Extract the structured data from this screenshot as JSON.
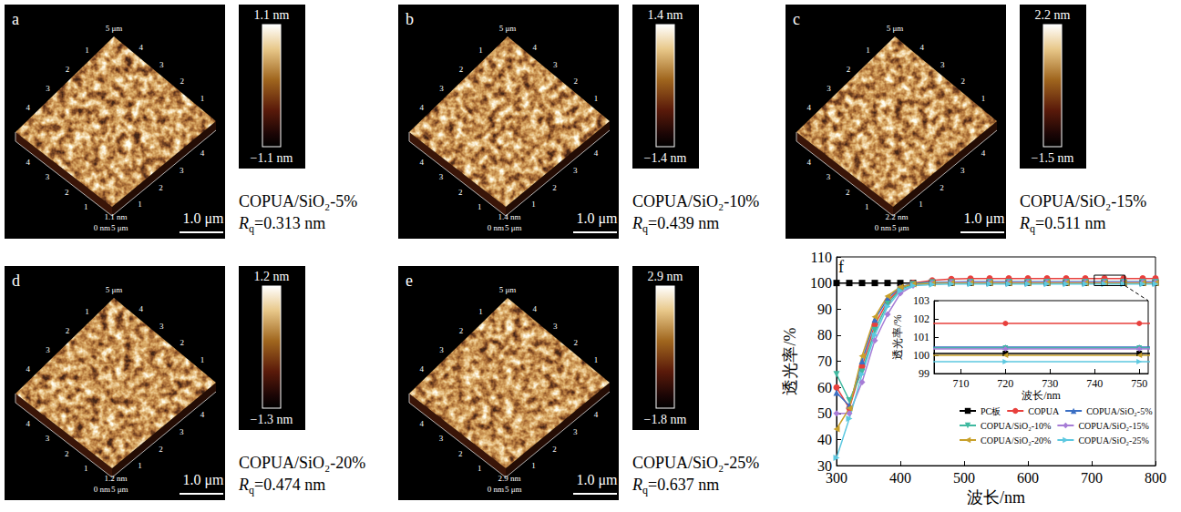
{
  "afm_common": {
    "top_label": "5 μm",
    "edge_ticks": [
      "1",
      "2",
      "3",
      "4"
    ],
    "origin_label": "0 nm",
    "end_label": "5 μm",
    "scale_bar": "1.0 μm"
  },
  "afm_panels": [
    {
      "letter": "a",
      "z_label": "1.1 nm",
      "colorbar_max": "1.1 nm",
      "colorbar_min": "−1.1 nm",
      "sample": "COPUA/SiO₂-5%",
      "rq": {
        "symbol": "R",
        "subscript": "q",
        "text": "=0.313 nm"
      }
    },
    {
      "letter": "b",
      "z_label": "1.4 nm",
      "colorbar_max": "1.4 nm",
      "colorbar_min": "−1.4 nm",
      "sample": "COPUA/SiO₂-10%",
      "rq": {
        "symbol": "R",
        "subscript": "q",
        "text": "=0.439 nm"
      }
    },
    {
      "letter": "c",
      "z_label": "2.2 nm",
      "colorbar_max": "2.2 nm",
      "colorbar_min": "−1.5 nm",
      "sample": "COPUA/SiO₂-15%",
      "rq": {
        "symbol": "R",
        "subscript": "q",
        "text": "=0.511 nm"
      }
    },
    {
      "letter": "d",
      "z_label": "1.2 nm",
      "colorbar_max": "1.2 nm",
      "colorbar_min": "−1.3 nm",
      "sample": "COPUA/SiO₂-20%",
      "rq": {
        "symbol": "R",
        "subscript": "q",
        "text": "=0.474 nm"
      }
    },
    {
      "letter": "e",
      "z_label": "2.9 nm",
      "colorbar_max": "2.9 nm",
      "colorbar_min": "−1.8 nm",
      "sample": "COPUA/SiO₂-25%",
      "rq": {
        "symbol": "R",
        "subscript": "q",
        "text": "=0.637 nm"
      }
    }
  ],
  "chart_data": {
    "type": "line",
    "panel_letter": "f",
    "x_label": "波长/nm",
    "y_label": "透光率/%",
    "xlim": [
      300,
      800
    ],
    "xticks": [
      300,
      400,
      500,
      600,
      700,
      800
    ],
    "ylim": [
      30,
      110
    ],
    "yticks": [
      30,
      40,
      50,
      60,
      70,
      80,
      90,
      100,
      110
    ],
    "grid": false,
    "legend": "lower right",
    "x": [
      300,
      320,
      340,
      360,
      380,
      400,
      420,
      450,
      480,
      510,
      540,
      570,
      600,
      630,
      660,
      690,
      720,
      750,
      780,
      800
    ],
    "series": [
      {
        "name": "PC板",
        "color": "#000000",
        "marker": "square",
        "values": [
          100.0,
          100.0,
          100.0,
          100.0,
          100.0,
          100.0,
          100.0,
          100.1,
          100.1,
          100.1,
          100.1,
          100.1,
          100.1,
          100.1,
          100.1,
          100.1,
          100.1,
          100.1,
          100.1,
          100.1
        ]
      },
      {
        "name": "COPUA",
        "color": "#e8403d",
        "marker": "circle",
        "values": [
          60,
          52,
          68,
          84,
          93,
          98,
          100,
          101,
          101.5,
          101.7,
          101.75,
          101.75,
          101.75,
          101.75,
          101.75,
          101.75,
          101.75,
          101.75,
          101.75,
          101.75
        ]
      },
      {
        "name": "COPUA/SiO₂-5%",
        "color": "#3b6fc4",
        "marker": "triangle",
        "values": [
          58,
          53,
          70,
          86,
          94,
          98.5,
          99.8,
          100.3,
          100.4,
          100.45,
          100.45,
          100.45,
          100.45,
          100.45,
          100.45,
          100.45,
          100.45,
          100.45,
          100.45,
          100.45
        ]
      },
      {
        "name": "COPUA/SiO₂-10%",
        "color": "#3fb9a0",
        "marker": "triangle_down",
        "values": [
          65,
          55,
          66,
          82,
          92,
          97.5,
          99.5,
          100.2,
          100.35,
          100.4,
          100.4,
          100.4,
          100.4,
          100.4,
          100.4,
          100.4,
          100.4,
          100.4,
          100.4,
          100.4
        ]
      },
      {
        "name": "COPUA/SiO₂-15%",
        "color": "#a67cd6",
        "marker": "diamond",
        "values": [
          50,
          50,
          62,
          78,
          88,
          96,
          99,
          100,
          100.3,
          100.35,
          100.35,
          100.35,
          100.35,
          100.35,
          100.35,
          100.35,
          100.35,
          100.35,
          100.35,
          100.35
        ]
      },
      {
        "name": "COPUA/SiO₂-20%",
        "color": "#c8a02a",
        "marker": "triangle_left",
        "values": [
          44,
          52,
          72,
          87,
          95,
          98.5,
          99.5,
          99.8,
          99.95,
          100.0,
          100.0,
          100.0,
          100.0,
          100.0,
          100.0,
          100.0,
          100.0,
          100.0,
          100.0,
          100.0
        ]
      },
      {
        "name": "COPUA/SiO₂-25%",
        "color": "#5cc8e0",
        "marker": "triangle_right",
        "values": [
          33,
          48,
          65,
          80,
          91,
          97,
          99,
          99.4,
          99.6,
          99.65,
          99.65,
          99.65,
          99.65,
          99.65,
          99.65,
          99.65,
          99.65,
          99.65,
          99.65,
          99.65
        ]
      }
    ],
    "inset": {
      "x_label": "波长/nm",
      "y_label": "透光率/%",
      "xlim": [
        704,
        752
      ],
      "xticks": [
        710,
        720,
        730,
        740,
        750
      ],
      "ylim": [
        99,
        103
      ],
      "yticks": [
        99,
        100,
        101,
        102,
        103
      ]
    }
  }
}
